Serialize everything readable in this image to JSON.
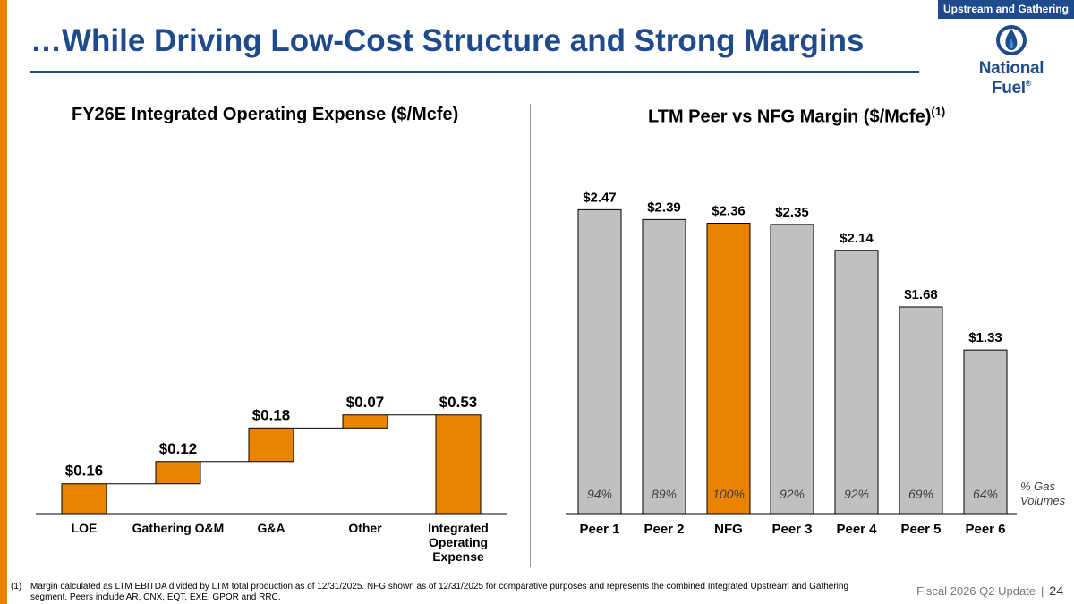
{
  "header": {
    "title": "…While Driving Low-Cost Structure and Strong Margins",
    "badge": "Upstream and Gathering",
    "logo_text": "National Fuel",
    "logo_mark": "®"
  },
  "colors": {
    "brand_blue": "#1F4A8C",
    "accent_orange": "#E98300",
    "bar_gray": "#C0C0C0"
  },
  "chart_data": [
    {
      "type": "bar",
      "subtype": "waterfall",
      "title": "FY26E Integrated Operating Expense ($/Mcfe)",
      "categories": [
        "LOE",
        "Gathering O&M",
        "G&A",
        "Other",
        "Integrated Operating Expense"
      ],
      "values": [
        0.16,
        0.12,
        0.18,
        0.07,
        0.53
      ],
      "labels": [
        "$0.16",
        "$0.12",
        "$0.18",
        "$0.07",
        "$0.53"
      ],
      "total_index": 4,
      "xlabel": "",
      "ylabel": ""
    },
    {
      "type": "bar",
      "title": "LTM Peer vs NFG Margin ($/Mcfe)",
      "title_sup": "(1)",
      "categories": [
        "Peer 1",
        "Peer 2",
        "NFG",
        "Peer 3",
        "Peer 4",
        "Peer 5",
        "Peer 6"
      ],
      "values": [
        2.47,
        2.39,
        2.36,
        2.35,
        2.14,
        1.68,
        1.33
      ],
      "labels": [
        "$2.47",
        "$2.39",
        "$2.36",
        "$2.35",
        "$2.14",
        "$1.68",
        "$1.33"
      ],
      "gas_volumes": [
        "94%",
        "89%",
        "100%",
        "92%",
        "92%",
        "69%",
        "64%"
      ],
      "gas_volumes_label": [
        "% Gas",
        "Volumes"
      ],
      "highlight": "NFG",
      "xlabel": "",
      "ylabel": ""
    }
  ],
  "footnote": {
    "number": "(1)",
    "text": "Margin calculated as LTM EBITDA divided by LTM total production as of 12/31/2025.  NFG shown as of 12/31/2025 for comparative purposes and represents the combined Integrated Upstream and Gathering segment. Peers include AR, CNX, EQT, EXE, GPOR and RRC."
  },
  "footer": {
    "label": "Fiscal 2026 Q2 Update",
    "separator": "|",
    "page": "24"
  }
}
